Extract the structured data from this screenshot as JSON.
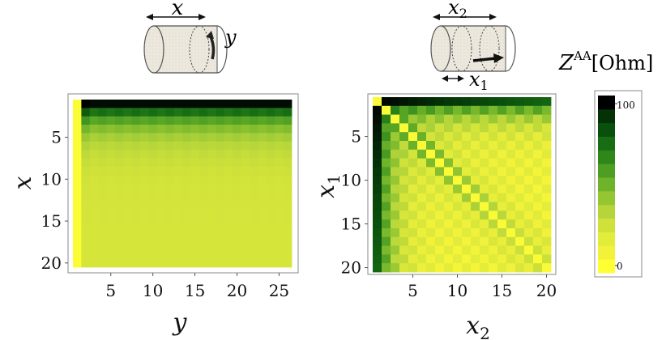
{
  "chart_data": [
    {
      "type": "heatmap",
      "xlabel": "y",
      "ylabel": "x",
      "x_ticks": [
        5,
        10,
        15,
        20,
        25
      ],
      "y_ticks": [
        5,
        10,
        15,
        20
      ],
      "n_cols": 26,
      "n_rows": 20,
      "x_range": [
        1,
        26
      ],
      "y_range": [
        1,
        20
      ],
      "y_axis_inverted": true,
      "inset_labels": [
        "x",
        "y"
      ],
      "description": "column y=1 near 0; row x=1 near 100 for y>=3; values decay with x toward ~20"
    },
    {
      "type": "heatmap",
      "xlabel": "x_2",
      "ylabel": "x_1",
      "x_ticks": [
        5,
        10,
        15,
        20
      ],
      "y_ticks": [
        5,
        10,
        15,
        20
      ],
      "n_cols": 20,
      "n_rows": 20,
      "x_range": [
        1,
        20
      ],
      "y_range": [
        1,
        20
      ],
      "y_axis_inverted": true,
      "inset_labels": [
        "x_2",
        "x_1"
      ],
      "description": "diagonal x1=x2 near 0, |x1-x2|=1 near 100; checkerboard parity pattern with values decreasing away from first row/column"
    }
  ],
  "colorbar": {
    "label_main": "Z",
    "label_sup": "AA",
    "label_unit": "[Ohm]",
    "min": 0,
    "max": 100,
    "tick_min": "0",
    "tick_max": "100",
    "colors": [
      "#ffff33",
      "#f2f23a",
      "#e2ec3a",
      "#cfe13a",
      "#b5d53a",
      "#94c632",
      "#6fb32a",
      "#4d9e23",
      "#2f861b",
      "#186d14",
      "#0a500d",
      "#043207",
      "#000000"
    ]
  },
  "left": {
    "xlabel": "y",
    "ylabel": "x",
    "ticks_x": [
      "5",
      "10",
      "15",
      "20",
      "25"
    ],
    "ticks_y": [
      "5",
      "10",
      "15",
      "20"
    ]
  },
  "right": {
    "xlabel": "x",
    "xsub": "2",
    "ylabel": "x",
    "ysub": "1",
    "ticks_x": [
      "5",
      "10",
      "15",
      "20"
    ],
    "ticks_y": [
      "5",
      "10",
      "15",
      "20"
    ]
  },
  "insets": {
    "left": {
      "top_label": "x",
      "side_label": "y"
    },
    "right": {
      "top_label": "x",
      "top_sub": "2",
      "bottom_label": "x",
      "bottom_sub": "1"
    }
  }
}
